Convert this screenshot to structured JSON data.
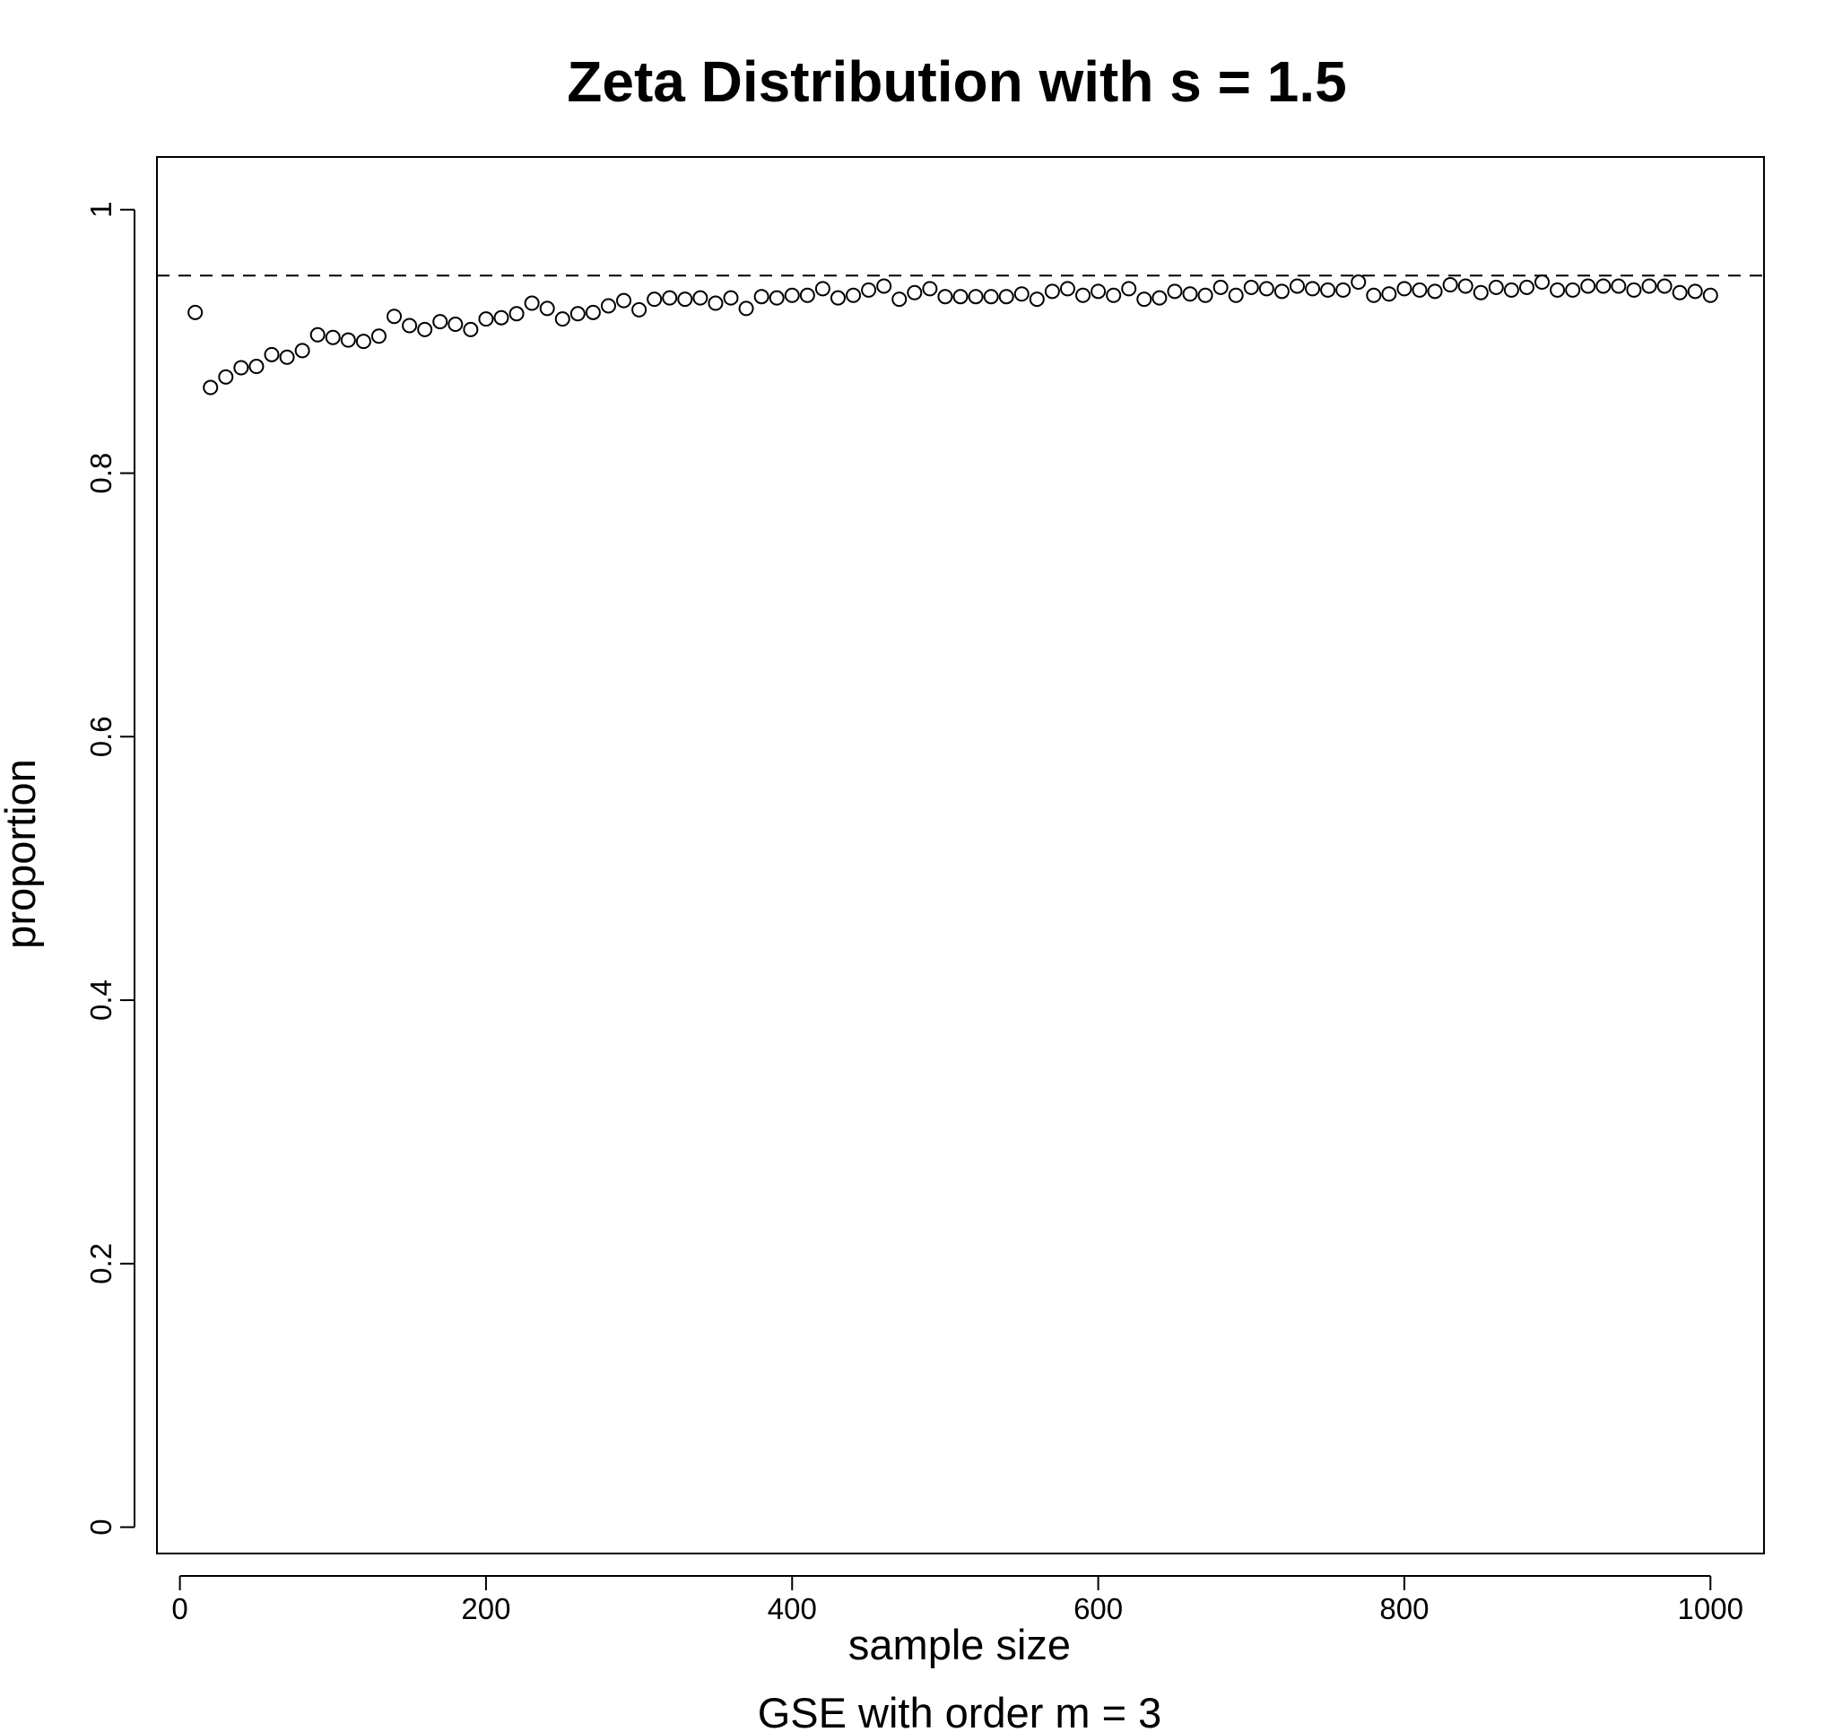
{
  "chart_data": {
    "type": "scatter",
    "title": "Zeta Distribution with s = 1.5",
    "xlabel": "sample size",
    "ylabel": "proportion",
    "subtitle": "GSE with order m = 3",
    "xlim": [
      -15,
      1035
    ],
    "ylim": [
      -0.02,
      1.04
    ],
    "x_ticks": [
      0,
      200,
      400,
      600,
      800,
      1000
    ],
    "x_tick_labels": [
      "0",
      "200",
      "400",
      "600",
      "800",
      "1000"
    ],
    "y_ticks": [
      0,
      0.2,
      0.4,
      0.6,
      0.8,
      1
    ],
    "y_tick_labels": [
      "0",
      "0.2",
      "0.4",
      "0.6",
      "0.8",
      "1"
    ],
    "reference_line": {
      "y": 0.95,
      "style": "dashed"
    },
    "marker": "open-circle",
    "grid": false,
    "legend": "none",
    "x": [
      10,
      20,
      30,
      40,
      50,
      60,
      70,
      80,
      90,
      100,
      110,
      120,
      130,
      140,
      150,
      160,
      170,
      180,
      190,
      200,
      210,
      220,
      230,
      240,
      250,
      260,
      270,
      280,
      290,
      300,
      310,
      320,
      330,
      340,
      350,
      360,
      370,
      380,
      390,
      400,
      410,
      420,
      430,
      440,
      450,
      460,
      470,
      480,
      490,
      500,
      510,
      520,
      530,
      540,
      550,
      560,
      570,
      580,
      590,
      600,
      610,
      620,
      630,
      640,
      650,
      660,
      670,
      680,
      690,
      700,
      710,
      720,
      730,
      740,
      750,
      760,
      770,
      780,
      790,
      800,
      810,
      820,
      830,
      840,
      850,
      860,
      870,
      880,
      890,
      900,
      910,
      920,
      930,
      940,
      950,
      960,
      970,
      980,
      990,
      1000
    ],
    "y": [
      0.922,
      0.865,
      0.873,
      0.88,
      0.881,
      0.89,
      0.888,
      0.893,
      0.905,
      0.903,
      0.901,
      0.9,
      0.904,
      0.919,
      0.912,
      0.909,
      0.915,
      0.913,
      0.909,
      0.917,
      0.918,
      0.921,
      0.929,
      0.925,
      0.917,
      0.921,
      0.922,
      0.927,
      0.931,
      0.924,
      0.932,
      0.933,
      0.932,
      0.933,
      0.929,
      0.933,
      0.925,
      0.934,
      0.933,
      0.935,
      0.935,
      0.94,
      0.933,
      0.935,
      0.939,
      0.942,
      0.932,
      0.937,
      0.94,
      0.934,
      0.934,
      0.934,
      0.934,
      0.934,
      0.936,
      0.932,
      0.938,
      0.94,
      0.935,
      0.938,
      0.935,
      0.94,
      0.932,
      0.933,
      0.938,
      0.936,
      0.935,
      0.941,
      0.935,
      0.941,
      0.94,
      0.938,
      0.942,
      0.94,
      0.939,
      0.939,
      0.945,
      0.935,
      0.936,
      0.94,
      0.939,
      0.938,
      0.943,
      0.942,
      0.937,
      0.941,
      0.939,
      0.941,
      0.945,
      0.939,
      0.939,
      0.942,
      0.942,
      0.942,
      0.939,
      0.942,
      0.942,
      0.937,
      0.938,
      0.935
    ]
  }
}
